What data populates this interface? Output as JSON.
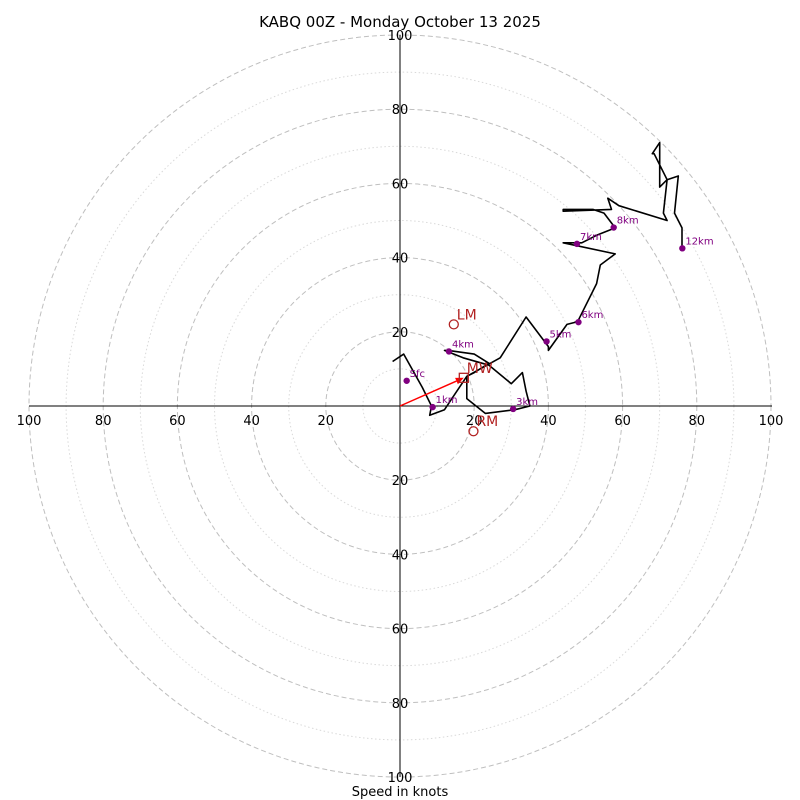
{
  "chart_data": {
    "type": "hodograph",
    "title": "KABQ 00Z - Monday October 13 2025",
    "xlabel": "Speed in knots",
    "max_speed": 100,
    "ring_step_major": 20,
    "ring_step_minor": 10,
    "tick_labels": [
      "20",
      "40",
      "60",
      "80",
      "100"
    ],
    "colors": {
      "trace": "#000000",
      "height_marker": "#800080",
      "motion": "#b22222",
      "arrow": "#ff0000",
      "ring": "#bfbfbf"
    },
    "trace": [
      [
        -2,
        12
      ],
      [
        1,
        14
      ],
      [
        6,
        5
      ],
      [
        8.5,
        0
      ],
      [
        8,
        -2.5
      ],
      [
        12,
        -1
      ],
      [
        14,
        2
      ],
      [
        18,
        8
      ],
      [
        20,
        9
      ],
      [
        24,
        11.5
      ],
      [
        20,
        14
      ],
      [
        13,
        15
      ],
      [
        12,
        15
      ],
      [
        17,
        13
      ],
      [
        24,
        11
      ],
      [
        30,
        6
      ],
      [
        33,
        9
      ],
      [
        34,
        4
      ],
      [
        35,
        0
      ],
      [
        31,
        -1
      ],
      [
        23,
        -2
      ],
      [
        18,
        2
      ],
      [
        18,
        8
      ],
      [
        27,
        13
      ],
      [
        34,
        24
      ],
      [
        40,
        16
      ],
      [
        40,
        15
      ],
      [
        45,
        22
      ],
      [
        47,
        22.5
      ],
      [
        48,
        23
      ],
      [
        53,
        33
      ],
      [
        54,
        38
      ],
      [
        58,
        41
      ],
      [
        44,
        44
      ],
      [
        47,
        44
      ],
      [
        49,
        44
      ],
      [
        53,
        46
      ],
      [
        58,
        48
      ],
      [
        55,
        52
      ],
      [
        52,
        53
      ],
      [
        44,
        53
      ],
      [
        44,
        52.5
      ],
      [
        57,
        53
      ],
      [
        56,
        56
      ],
      [
        59,
        54
      ],
      [
        72,
        50
      ],
      [
        71,
        52
      ],
      [
        72,
        61
      ],
      [
        70,
        59
      ],
      [
        70,
        71
      ],
      [
        68,
        68
      ],
      [
        68.5,
        68
      ],
      [
        72,
        61
      ],
      [
        75,
        62
      ],
      [
        74,
        52
      ],
      [
        76,
        48
      ],
      [
        76,
        42
      ]
    ],
    "height_markers": [
      {
        "label": "Sfc",
        "u": 1.8,
        "v": 6.8
      },
      {
        "label": "1km",
        "u": 8.8,
        "v": -0.3
      },
      {
        "label": "3km",
        "u": 30.5,
        "v": -0.8
      },
      {
        "label": "4km",
        "u": 13.2,
        "v": 14.7
      },
      {
        "label": "5km",
        "u": 39.5,
        "v": 17.4
      },
      {
        "label": "6km",
        "u": 48.1,
        "v": 22.6
      },
      {
        "label": "7km",
        "u": 47.7,
        "v": 43.7
      },
      {
        "label": "8km",
        "u": 57.6,
        "v": 48.1
      },
      {
        "label": "12km",
        "u": 76.1,
        "v": 42.5
      }
    ],
    "storm_motions": [
      {
        "label": "LM",
        "u": 14.5,
        "v": 22.0,
        "marker": "circle"
      },
      {
        "label": "RM",
        "u": 19.8,
        "v": -6.8,
        "marker": "circle"
      },
      {
        "label": "MW",
        "u": 17.2,
        "v": 7.6,
        "marker": "square"
      }
    ],
    "mean_wind_arrow": {
      "u": 17.2,
      "v": 7.6
    }
  }
}
